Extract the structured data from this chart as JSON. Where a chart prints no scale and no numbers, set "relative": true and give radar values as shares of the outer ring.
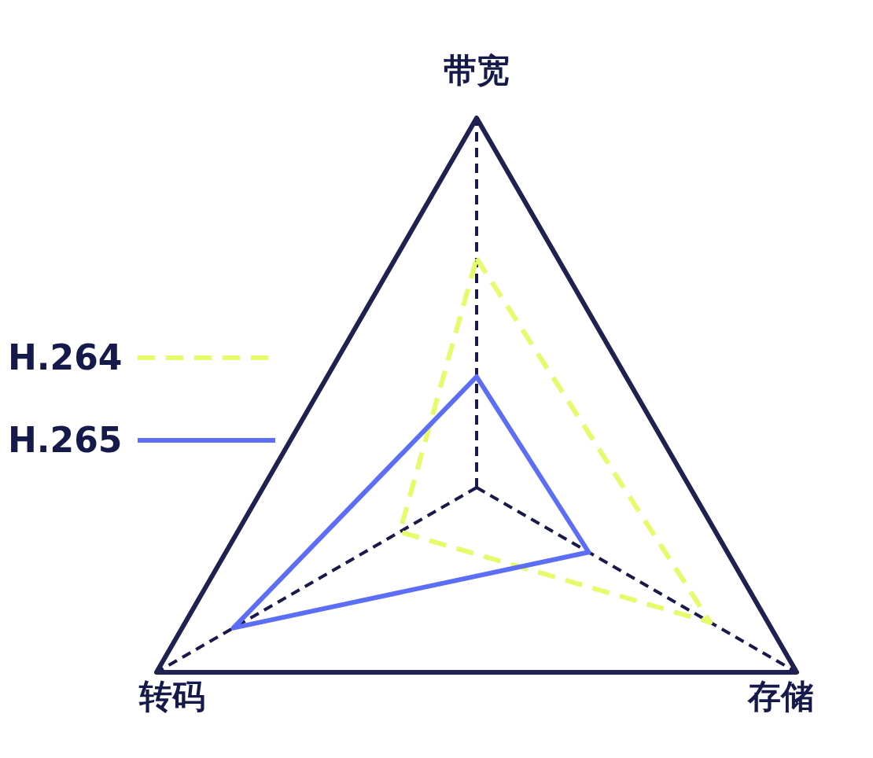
{
  "chart_data": {
    "type": "radar",
    "categories": [
      "带宽",
      "存储",
      "转码"
    ],
    "relative": true,
    "legend": "left",
    "series": [
      {
        "name": "H.264",
        "color": "#e6fa6a",
        "line_style": "dashed",
        "values": [
          0.62,
          0.73,
          0.24
        ]
      },
      {
        "name": "H.265",
        "color": "#5b6ef5",
        "line_style": "solid",
        "values": [
          0.3,
          0.35,
          0.76
        ]
      }
    ]
  }
}
